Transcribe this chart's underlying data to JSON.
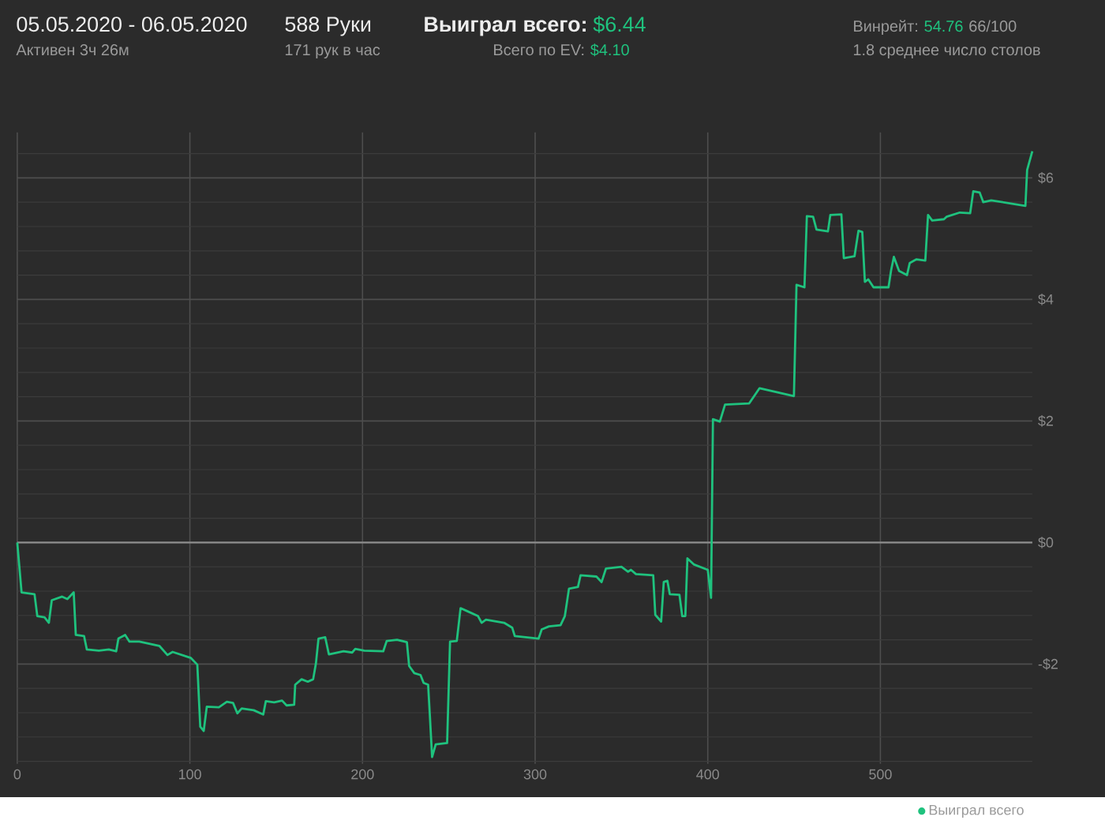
{
  "chart_data": {
    "type": "line",
    "title": "05.05.2020 - 06.05.2020",
    "annotations": [
      "Активен 3ч 26м",
      "588 Руки",
      "171 рук в час",
      "Выиграл всего:",
      "$6.44",
      "Всего по EV:",
      "$4.10",
      "Винрейт:",
      "54.76",
      "66/100",
      "1.8 среднее число столов"
    ],
    "x": [
      0,
      2.5,
      10,
      11.6,
      15.8,
      18.3,
      20,
      26,
      29,
      32.7,
      33.9,
      38.7,
      40.3,
      47.3,
      53,
      57.3,
      58.6,
      62.5,
      65,
      70.7,
      82.3,
      87,
      90,
      100.6,
      104.3,
      106,
      108,
      109.8,
      116.8,
      121.4,
      125,
      127.5,
      130,
      137,
      142.5,
      144,
      148.8,
      153.4,
      156,
      160.4,
      161,
      164.7,
      168.3,
      171.4,
      173,
      174.5,
      178.4,
      180.5,
      189,
      194,
      195.8,
      201,
      212,
      214,
      220,
      225.7,
      227,
      230,
      233.6,
      235.4,
      238,
      239,
      240.3,
      242.4,
      249,
      250.7,
      254.6,
      256.8,
      260.7,
      266.9,
      269,
      271.5,
      282,
      286.7,
      288.2,
      302,
      303.8,
      308,
      314.7,
      317.2,
      319.6,
      324.8,
      326.3,
      335.5,
      338.5,
      341,
      350,
      353.8,
      355.5,
      358.4,
      368.4,
      369.6,
      373,
      374.5,
      376.6,
      378,
      383.6,
      385.2,
      387,
      388.2,
      391.9,
      400,
      401.9,
      403,
      407,
      410,
      424,
      430,
      436,
      449.9,
      451.4,
      456,
      457.4,
      461,
      463,
      469.6,
      471,
      477.4,
      478.8,
      485,
      487.3,
      489.5,
      491,
      493,
      496,
      504.7,
      506.2,
      507.8,
      510.8,
      515.4,
      517,
      520.9,
      526,
      527.6,
      530,
      536.8,
      538.3,
      546,
      552,
      553.8,
      557.5,
      559.6,
      564.2,
      584,
      585,
      588
    ],
    "series": [
      {
        "name": "Выиграл всего",
        "color": "#1fc27e",
        "values": [
          0,
          -0.82,
          -0.85,
          -1.21,
          -1.23,
          -1.32,
          -0.95,
          -0.89,
          -0.93,
          -0.82,
          -1.52,
          -1.54,
          -1.76,
          -1.78,
          -1.76,
          -1.79,
          -1.58,
          -1.52,
          -1.63,
          -1.63,
          -1.7,
          -1.85,
          -1.8,
          -1.9,
          -2.01,
          -3.03,
          -3.1,
          -2.7,
          -2.71,
          -2.62,
          -2.64,
          -2.81,
          -2.73,
          -2.76,
          -2.83,
          -2.61,
          -2.63,
          -2.6,
          -2.68,
          -2.67,
          -2.34,
          -2.25,
          -2.29,
          -2.25,
          -1.99,
          -1.58,
          -1.56,
          -1.84,
          -1.79,
          -1.81,
          -1.75,
          -1.78,
          -1.79,
          -1.62,
          -1.6,
          -1.64,
          -2.03,
          -2.15,
          -2.18,
          -2.31,
          -2.34,
          -2.84,
          -3.53,
          -3.32,
          -3.3,
          -1.63,
          -1.62,
          -1.08,
          -1.13,
          -1.21,
          -1.32,
          -1.27,
          -1.32,
          -1.4,
          -1.54,
          -1.58,
          -1.43,
          -1.38,
          -1.36,
          -1.21,
          -0.76,
          -0.73,
          -0.54,
          -0.56,
          -0.65,
          -0.43,
          -0.4,
          -0.48,
          -0.45,
          -0.52,
          -0.54,
          -1.19,
          -1.3,
          -0.65,
          -0.63,
          -0.85,
          -0.86,
          -1.21,
          -1.21,
          -0.26,
          -0.36,
          -0.45,
          -0.91,
          2.03,
          1.99,
          2.27,
          2.29,
          2.54,
          2.5,
          2.41,
          4.24,
          4.2,
          5.37,
          5.36,
          5.15,
          5.12,
          5.39,
          5.4,
          4.68,
          4.71,
          5.13,
          5.11,
          4.29,
          4.33,
          4.2,
          4.2,
          4.48,
          4.7,
          4.47,
          4.4,
          4.6,
          4.66,
          4.64,
          5.39,
          5.3,
          5.32,
          5.36,
          5.43,
          5.42,
          5.78,
          5.76,
          5.6,
          5.63,
          5.54,
          6.13,
          6.44
        ]
      }
    ],
    "xlim": [
      0,
      588
    ],
    "xticks": [
      0,
      100,
      200,
      300,
      400,
      500
    ],
    "ylim": [
      -3.64,
      6.75
    ],
    "yticks": [
      {
        "value": -3.6,
        "label": null
      },
      {
        "value": -3.2,
        "label": null
      },
      {
        "value": -2.8,
        "label": null
      },
      {
        "value": -2.4,
        "label": null
      },
      {
        "value": -2,
        "label": "-$2"
      },
      {
        "value": -1.6,
        "label": null
      },
      {
        "value": -1.2,
        "label": null
      },
      {
        "value": -0.8,
        "label": null
      },
      {
        "value": -0.4,
        "label": null
      },
      {
        "value": 0,
        "label": "$0"
      },
      {
        "value": 0.4,
        "label": null
      },
      {
        "value": 0.8,
        "label": null
      },
      {
        "value": 1.2,
        "label": null
      },
      {
        "value": 1.6,
        "label": null
      },
      {
        "value": 2,
        "label": "$2"
      },
      {
        "value": 2.4,
        "label": null
      },
      {
        "value": 2.8,
        "label": null
      },
      {
        "value": 3.2,
        "label": null
      },
      {
        "value": 3.6,
        "label": null
      },
      {
        "value": 4,
        "label": "$4"
      },
      {
        "value": 4.4,
        "label": null
      },
      {
        "value": 4.8,
        "label": null
      },
      {
        "value": 5.2,
        "label": null
      },
      {
        "value": 5.6,
        "label": null
      },
      {
        "value": 6,
        "label": "$6"
      },
      {
        "value": 6.4,
        "label": null
      }
    ],
    "ref_lines": [
      {
        "axis": "y",
        "value": 0,
        "label": null,
        "color": "#8c8c8c"
      }
    ],
    "grid": true,
    "legend": "bottom right"
  }
}
